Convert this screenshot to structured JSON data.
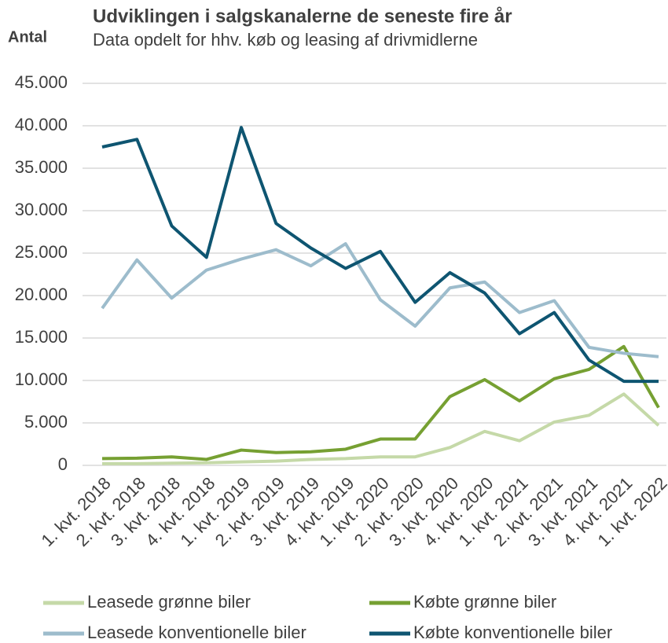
{
  "chart_data": {
    "type": "line",
    "title": "Udviklingen i salgskanalerne de seneste fire år",
    "subtitle": "Data opdelt for hhv. køb og leasing af drivmidlerne",
    "y_label": "Antal",
    "categories": [
      "1. kvt. 2018",
      "2. kvt. 2018",
      "3. kvt. 2018",
      "4. kvt. 2018",
      "1. kvt. 2019",
      "2. kvt. 2019",
      "3. kvt. 2019",
      "4. kvt. 2019",
      "1. kvt. 2020",
      "2. kvt. 2020",
      "3. kvt. 2020",
      "4. kvt. 2020",
      "1. kvt. 2021",
      "2. kvt. 2021",
      "3. kvt. 2021",
      "4. kvt. 2021",
      "1. kvt. 2022"
    ],
    "series": [
      {
        "name": "Leasede grønne biler",
        "color": "#c5d9a8",
        "values": [
          200,
          200,
          250,
          300,
          400,
          500,
          700,
          800,
          1000,
          1000,
          2100,
          4000,
          2900,
          5100,
          5900,
          8400,
          4700
        ]
      },
      {
        "name": "Købte grønne biler",
        "color": "#76a032",
        "values": [
          800,
          850,
          1000,
          700,
          1800,
          1500,
          1600,
          1900,
          3100,
          3100,
          8100,
          10100,
          7600,
          10200,
          11300,
          14000,
          6800
        ]
      },
      {
        "name": "Leasede konventionelle biler",
        "color": "#9dbccc",
        "values": [
          18500,
          24200,
          19700,
          23000,
          24300,
          25400,
          23500,
          26100,
          19500,
          16400,
          20900,
          21600,
          18000,
          19400,
          13900,
          13200,
          12800
        ]
      },
      {
        "name": "Købte konventionelle biler",
        "color": "#0e5571",
        "values": [
          37500,
          38400,
          28200,
          24500,
          39800,
          28500,
          25600,
          23200,
          25200,
          19200,
          22700,
          20300,
          15500,
          18000,
          12400,
          9900,
          9900
        ]
      }
    ],
    "ylim": [
      0,
      45000
    ],
    "yticks": [
      0,
      {
        "value": 5000,
        "label": "5.000"
      },
      {
        "value": 10000,
        "label": "10.000"
      },
      {
        "value": 15000,
        "label": "15.000"
      },
      {
        "value": 20000,
        "label": "20.000"
      },
      {
        "value": 25000,
        "label": "25.000"
      },
      {
        "value": 30000,
        "label": "30.000"
      },
      {
        "value": 35000,
        "label": "35.000"
      },
      {
        "value": 40000,
        "label": "40.000"
      },
      {
        "value": 45000,
        "label": "45.000"
      }
    ],
    "grid": true,
    "legend": "bottom"
  }
}
